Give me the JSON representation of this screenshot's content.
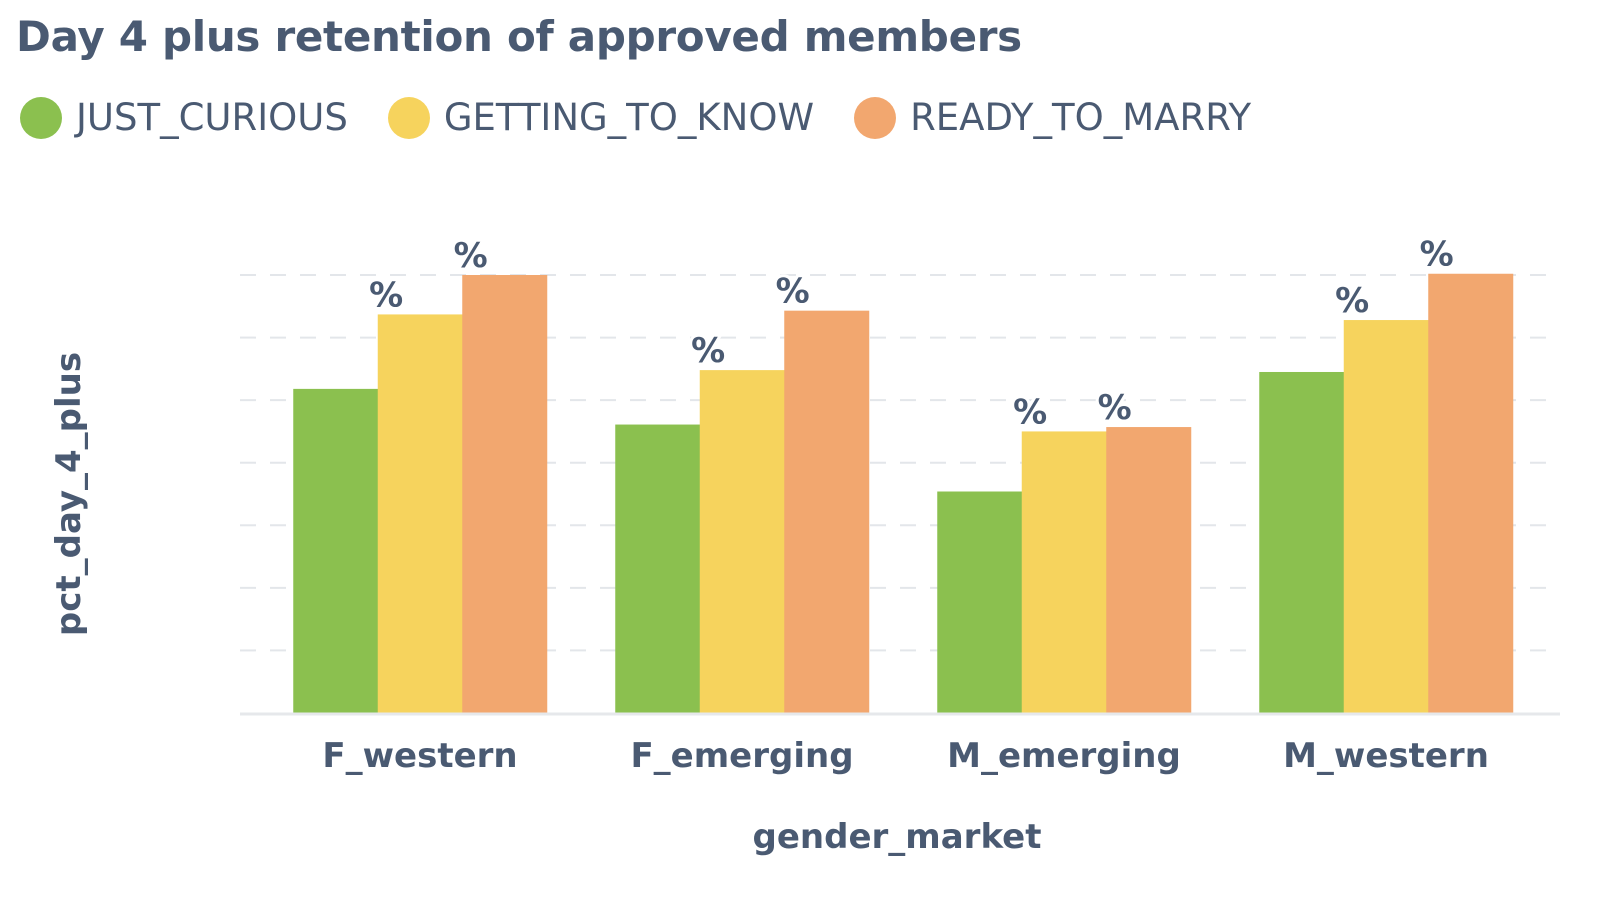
{
  "chart_data": {
    "type": "bar",
    "title": "Day 4 plus retention of approved members",
    "xlabel": "gender_market",
    "ylabel": "pct_day_4_plus",
    "categories": [
      "F_western",
      "F_emerging",
      "M_emerging",
      "M_western"
    ],
    "series": [
      {
        "name": "JUST_CURIOUS",
        "color": "#8bc04f",
        "values": [
          0.518,
          0.461,
          0.354,
          0.545
        ]
      },
      {
        "name": "GETTING_TO_KNOW",
        "color": "#f6d35d",
        "values": [
          0.637,
          0.548,
          0.45,
          0.628
        ]
      },
      {
        "name": "READY_TO_MARRY",
        "color": "#f2a76f",
        "values": [
          0.7,
          0.643,
          0.457,
          0.702
        ]
      }
    ],
    "data_labels": [
      [
        "",
        "%",
        "%"
      ],
      [
        "",
        "%",
        "%"
      ],
      [
        "",
        "%",
        "%"
      ],
      [
        "",
        "%",
        "%"
      ]
    ],
    "ylim": [
      0,
      0.7
    ],
    "grid": true,
    "legend_position": "top-left"
  }
}
